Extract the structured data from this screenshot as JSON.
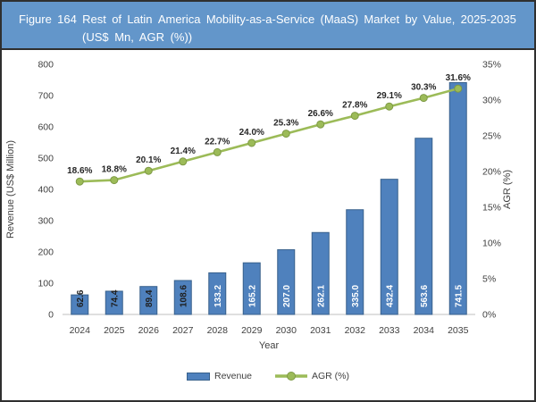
{
  "header": {
    "figure_label": "Figure 164",
    "title_line1": "Rest of Latin America Mobility-as-a-Service (MaaS) Market by Value, 2025-2035",
    "title_line2": "(US$ Mn, AGR (%))"
  },
  "chart_data": {
    "type": "bar",
    "subtype": "bar-with-line-overlay",
    "categories": [
      "2024",
      "2025",
      "2026",
      "2027",
      "2028",
      "2029",
      "2030",
      "2031",
      "2032",
      "2033",
      "2034",
      "2035"
    ],
    "series": [
      {
        "name": "Revenue",
        "type": "bar",
        "axis": "left",
        "values": [
          62.6,
          74.4,
          89.4,
          108.6,
          133.2,
          165.2,
          207.0,
          262.1,
          335.0,
          432.4,
          563.6,
          741.5
        ],
        "data_labels": [
          "62.6",
          "74.4",
          "89.4",
          "108.6",
          "133.2",
          "165.2",
          "207.0",
          "262.1",
          "335.0",
          "432.4",
          "563.6",
          "741.5"
        ],
        "data_label_colors": [
          "#1f1f1f",
          "#1f1f1f",
          "#1f1f1f",
          "#1f1f1f",
          "#ffffff",
          "#ffffff",
          "#ffffff",
          "#ffffff",
          "#ffffff",
          "#ffffff",
          "#ffffff",
          "#ffffff"
        ],
        "color": "#4F81BD",
        "border_color": "#38618C"
      },
      {
        "name": "AGR (%)",
        "type": "line",
        "axis": "right",
        "values": [
          18.6,
          18.8,
          20.1,
          21.4,
          22.7,
          24.0,
          25.3,
          26.6,
          27.8,
          29.1,
          30.3,
          31.6
        ],
        "data_labels": [
          "18.6%",
          "18.8%",
          "20.1%",
          "21.4%",
          "22.7%",
          "24.0%",
          "25.3%",
          "26.6%",
          "27.8%",
          "29.1%",
          "30.3%",
          "31.6%"
        ],
        "color": "#9CBB58",
        "marker_border_color": "#7E9A45"
      }
    ],
    "title": "Rest of Latin America Mobility-as-a-Service (MaaS) Market by Value, 2025-2035 (US$ Mn, AGR (%))",
    "xlabel": "Year",
    "ylabel": "Revenue (US$ Million)",
    "y2label": "AGR (%)",
    "ylim": [
      0,
      800
    ],
    "y2lim": [
      0,
      35
    ],
    "y_ticks": [
      "0",
      "100",
      "200",
      "300",
      "400",
      "500",
      "600",
      "700",
      "800"
    ],
    "y2_ticks": [
      "0%",
      "5%",
      "10%",
      "15%",
      "20%",
      "25%",
      "30%",
      "35%"
    ],
    "grid": "off",
    "legend_position": "bottom"
  },
  "colors": {
    "header_bg": "#6396CA",
    "header_text": "#ffffff",
    "outer_border": "#2f2f2f",
    "bar": "#4F81BD",
    "bar_border": "#38618C",
    "line": "#9CBB58",
    "axis_text": "#404040",
    "baseline": "#BFBFBF"
  }
}
